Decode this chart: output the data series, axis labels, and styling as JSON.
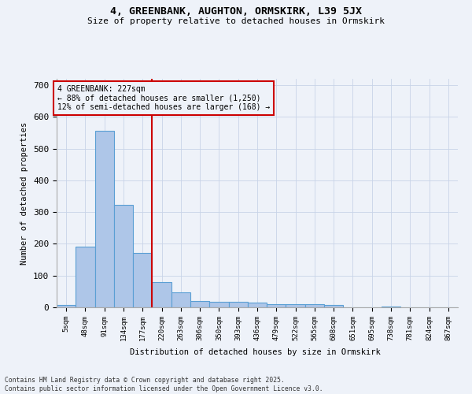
{
  "title_line1": "4, GREENBANK, AUGHTON, ORMSKIRK, L39 5JX",
  "title_line2": "Size of property relative to detached houses in Ormskirk",
  "xlabel": "Distribution of detached houses by size in Ormskirk",
  "ylabel": "Number of detached properties",
  "bar_labels": [
    "5sqm",
    "48sqm",
    "91sqm",
    "134sqm",
    "177sqm",
    "220sqm",
    "263sqm",
    "306sqm",
    "350sqm",
    "393sqm",
    "436sqm",
    "479sqm",
    "522sqm",
    "565sqm",
    "608sqm",
    "651sqm",
    "695sqm",
    "738sqm",
    "781sqm",
    "824sqm",
    "867sqm"
  ],
  "bar_values": [
    8,
    190,
    557,
    322,
    172,
    80,
    48,
    20,
    18,
    18,
    14,
    10,
    10,
    10,
    8,
    0,
    0,
    3,
    0,
    0,
    0
  ],
  "bar_color": "#aec6e8",
  "bar_edge_color": "#5a9fd4",
  "vline_color": "#cc0000",
  "vline_x_index": 4.5,
  "annotation_text": "4 GREENBANK: 227sqm\n← 88% of detached houses are smaller (1,250)\n12% of semi-detached houses are larger (168) →",
  "box_color": "#cc0000",
  "ylim": [
    0,
    720
  ],
  "yticks": [
    0,
    100,
    200,
    300,
    400,
    500,
    600,
    700
  ],
  "footer": "Contains HM Land Registry data © Crown copyright and database right 2025.\nContains public sector information licensed under the Open Government Licence v3.0.",
  "bg_color": "#eef2f9",
  "grid_color": "#c8d4e8"
}
